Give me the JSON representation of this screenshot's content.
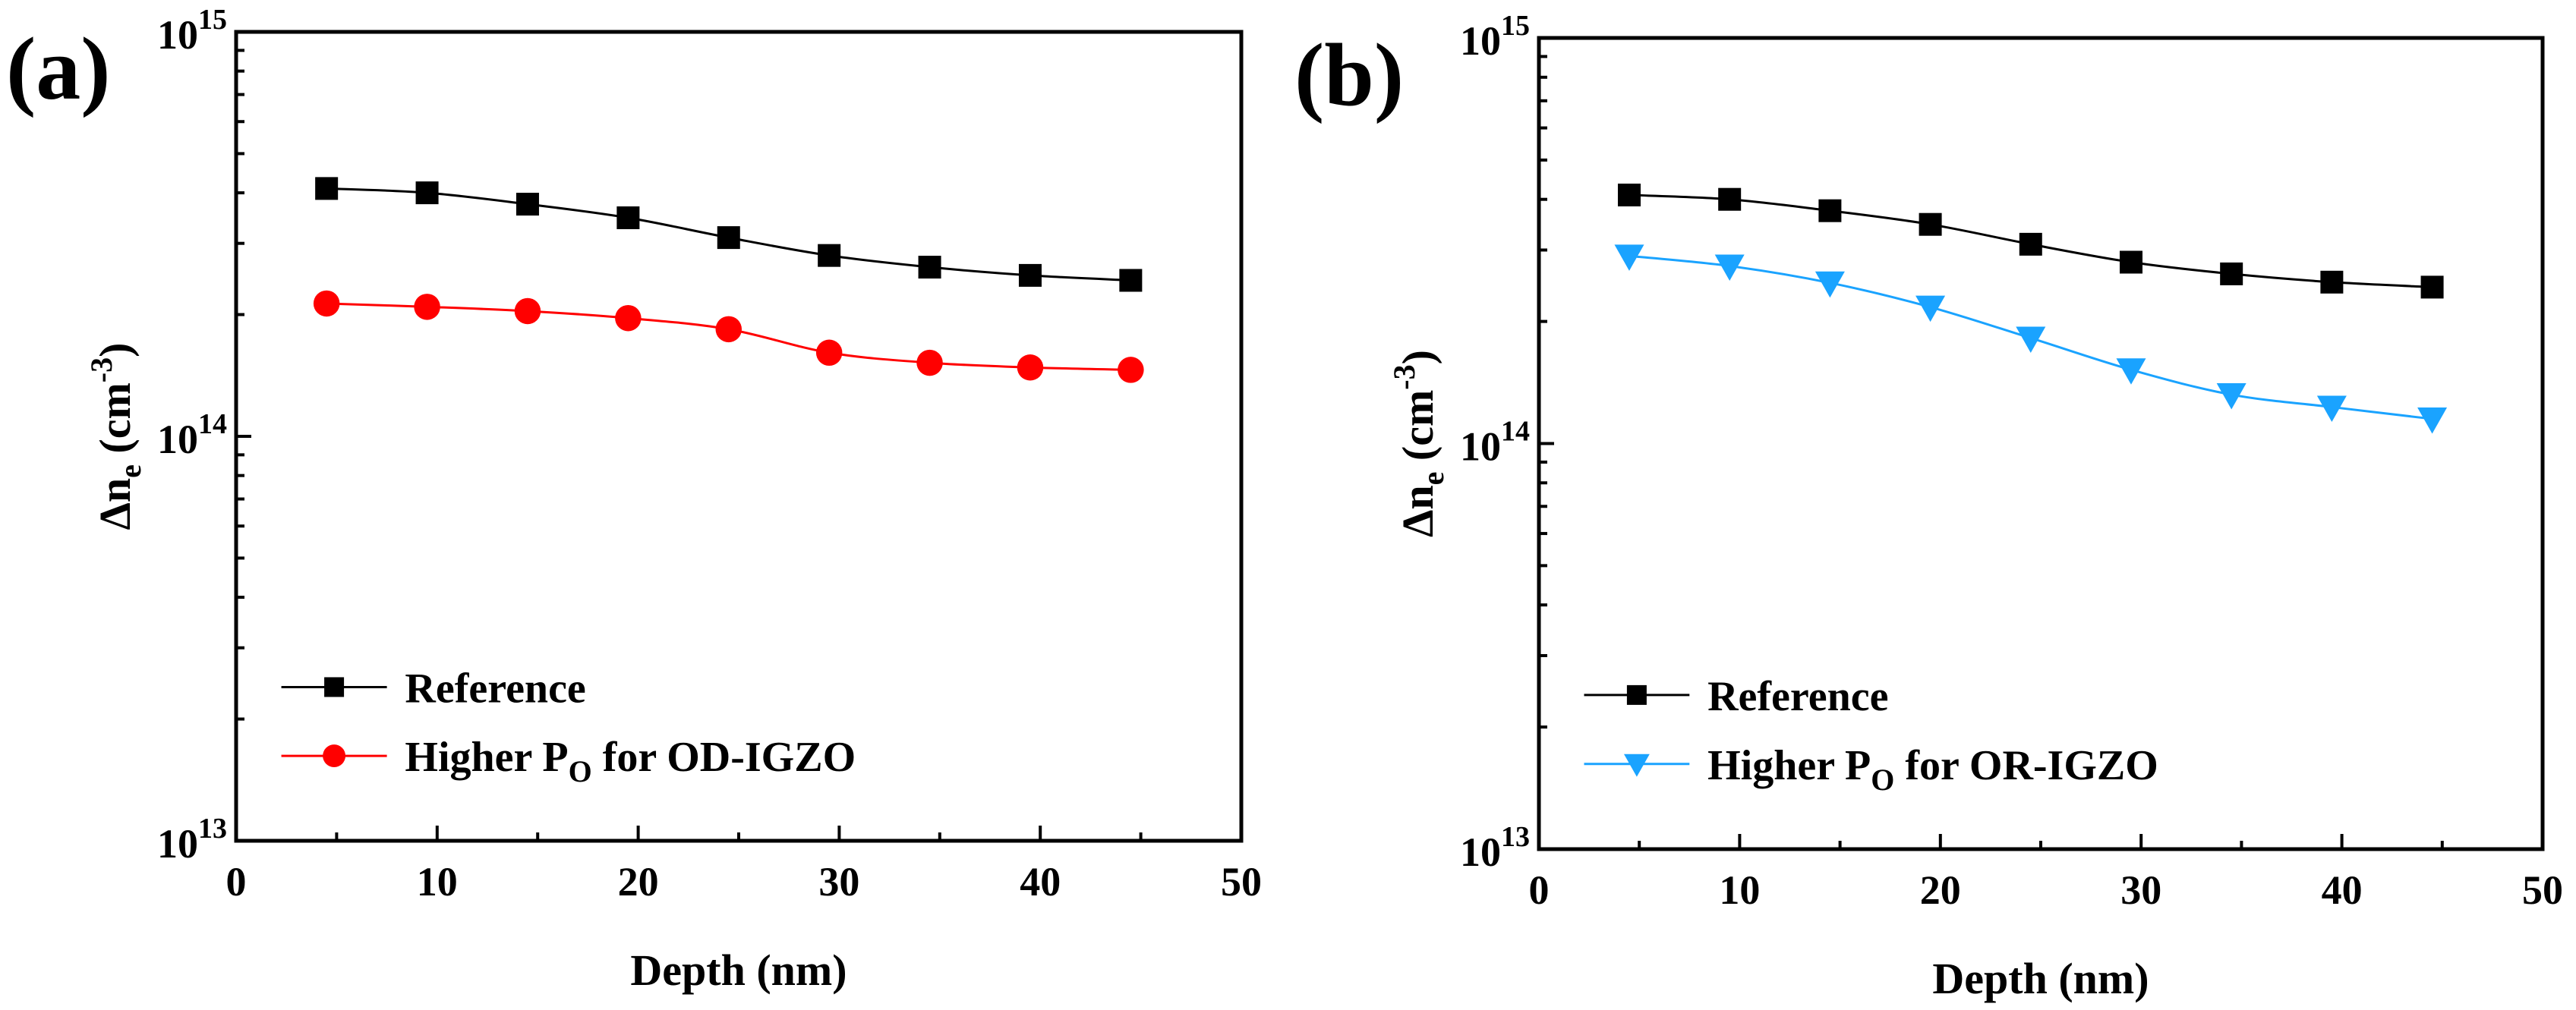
{
  "chart_data": [
    {
      "panel_label": "(a)",
      "type": "line",
      "xlabel": "Depth (nm)",
      "ylabel_main": "Δn",
      "ylabel_sub": "e",
      "ylabel_unit": " (cm",
      "ylabel_sup": "-3",
      "ylabel_close": ")",
      "xlim": [
        0,
        50
      ],
      "ylim": [
        10000000000000.0,
        1000000000000000.0
      ],
      "yscale": "log",
      "xticks": [
        "0",
        "10",
        "20",
        "30",
        "40",
        "50"
      ],
      "yticks": [
        {
          "base": "10",
          "exp": "13"
        },
        {
          "base": "10",
          "exp": "14"
        },
        {
          "base": "10",
          "exp": "15"
        }
      ],
      "legend_position": "bottom-left",
      "x": [
        4.5,
        9.5,
        14.5,
        19.5,
        24.5,
        29.5,
        34.5,
        39.5,
        44.5
      ],
      "series": [
        {
          "name": "Reference",
          "label": "Reference",
          "marker": "square",
          "color": "#000000",
          "values": [
            410000000000000.0,
            400000000000000.0,
            375000000000000.0,
            347000000000000.0,
            310000000000000.0,
            280000000000000.0,
            262000000000000.0,
            250000000000000.0,
            243000000000000.0
          ]
        },
        {
          "name": "Higher PO for OD-IGZO",
          "label_pre": "Higher P",
          "label_sub": "O",
          "label_post": " for OD-IGZO",
          "marker": "circle",
          "color": "#ff0000",
          "values": [
            213000000000000.0,
            209000000000000.0,
            204000000000000.0,
            196000000000000.0,
            184000000000000.0,
            161000000000000.0,
            152000000000000.0,
            148000000000000.0,
            146000000000000.0
          ]
        }
      ]
    },
    {
      "panel_label": "(b)",
      "type": "line",
      "xlabel": "Depth (nm)",
      "ylabel_main": "Δn",
      "ylabel_sub": "e",
      "ylabel_unit": " (cm",
      "ylabel_sup": "-3",
      "ylabel_close": ")",
      "xlim": [
        0,
        50
      ],
      "ylim": [
        10000000000000.0,
        1000000000000000.0
      ],
      "yscale": "log",
      "xticks": [
        "0",
        "10",
        "20",
        "30",
        "40",
        "50"
      ],
      "yticks": [
        {
          "base": "10",
          "exp": "13"
        },
        {
          "base": "10",
          "exp": "14"
        },
        {
          "base": "10",
          "exp": "15"
        }
      ],
      "legend_position": "bottom-left",
      "x": [
        4.5,
        9.5,
        14.5,
        19.5,
        24.5,
        29.5,
        34.5,
        39.5,
        44.5
      ],
      "series": [
        {
          "name": "Reference",
          "label": "Reference",
          "marker": "square",
          "color": "#000000",
          "values": [
            410000000000000.0,
            400000000000000.0,
            375000000000000.0,
            347000000000000.0,
            310000000000000.0,
            280000000000000.0,
            262000000000000.0,
            250000000000000.0,
            243000000000000.0
          ]
        },
        {
          "name": "Higher PO for OR-IGZO",
          "label_pre": "Higher P",
          "label_sub": "O",
          "label_post": " for OR-IGZO",
          "marker": "triangle-down",
          "color": "#1aa3ff",
          "values": [
            290000000000000.0,
            274000000000000.0,
            249000000000000.0,
            217000000000000.0,
            182000000000000.0,
            152000000000000.0,
            132000000000000.0,
            123000000000000.0,
            115000000000000.0
          ]
        }
      ]
    }
  ]
}
